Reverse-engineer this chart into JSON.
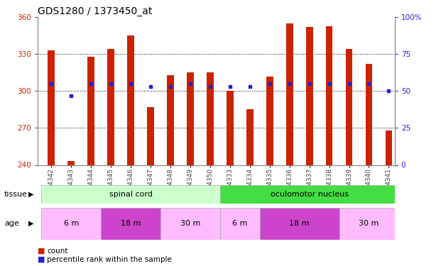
{
  "title": "GDS1280 / 1373450_at",
  "samples": [
    "GSM74342",
    "GSM74343",
    "GSM74344",
    "GSM74345",
    "GSM74346",
    "GSM74347",
    "GSM74348",
    "GSM74349",
    "GSM74350",
    "GSM74333",
    "GSM74334",
    "GSM74335",
    "GSM74336",
    "GSM74337",
    "GSM74338",
    "GSM74339",
    "GSM74340",
    "GSM74341"
  ],
  "counts": [
    333,
    243,
    328,
    334,
    345,
    287,
    313,
    315,
    315,
    300,
    285,
    312,
    355,
    352,
    353,
    334,
    322,
    268
  ],
  "percentiles": [
    55,
    47,
    55,
    55,
    55,
    53,
    53,
    55,
    53,
    53,
    53,
    55,
    55,
    55,
    55,
    55,
    55,
    50
  ],
  "y_min": 240,
  "y_max": 360,
  "y_ticks": [
    240,
    270,
    300,
    330,
    360
  ],
  "right_y_ticks": [
    0,
    25,
    50,
    75,
    100
  ],
  "right_y_labels": [
    "0",
    "25",
    "50",
    "75",
    "100%"
  ],
  "bar_color": "#cc2200",
  "dot_color": "#2222cc",
  "plot_bg": "#ffffff",
  "tissue_groups": [
    {
      "label": "spinal cord",
      "start": 0,
      "end": 9,
      "color": "#ccffcc"
    },
    {
      "label": "oculomotor nucleus",
      "start": 9,
      "end": 18,
      "color": "#44dd44"
    }
  ],
  "age_groups": [
    {
      "label": "6 m",
      "start": 0,
      "end": 3,
      "color": "#ffbbff"
    },
    {
      "label": "18 m",
      "start": 3,
      "end": 6,
      "color": "#cc44cc"
    },
    {
      "label": "30 m",
      "start": 6,
      "end": 9,
      "color": "#ffbbff"
    },
    {
      "label": "6 m",
      "start": 9,
      "end": 11,
      "color": "#ffbbff"
    },
    {
      "label": "18 m",
      "start": 11,
      "end": 15,
      "color": "#cc44cc"
    },
    {
      "label": "30 m",
      "start": 15,
      "end": 18,
      "color": "#ffbbff"
    }
  ],
  "legend_count_color": "#cc2200",
  "legend_dot_color": "#2222cc",
  "bar_width": 0.35,
  "tick_label_fontsize": 6.5,
  "title_fontsize": 10,
  "axis_label_color_left": "#cc2200",
  "axis_label_color_right": "#2222cc",
  "xlim_left": -0.7,
  "xlim_right": 17.3,
  "grid_lines": [
    270,
    300,
    330
  ]
}
